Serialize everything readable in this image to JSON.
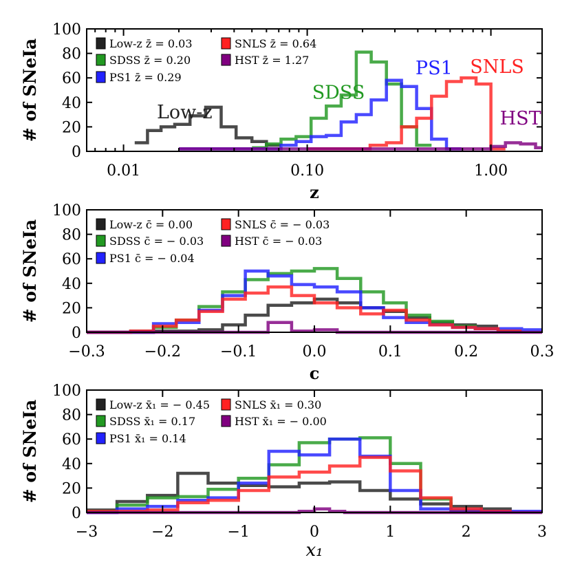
{
  "chart_data": [
    {
      "type": "histogram",
      "xscale": "log",
      "xlabel": "z",
      "ylabel": "# of SNeIa",
      "xlim": [
        0.0063,
        1.9
      ],
      "ylim": [
        0,
        100
      ],
      "yticks": [
        0,
        20,
        40,
        60,
        80,
        100
      ],
      "xtick_labels": [
        "0.01",
        "0.10",
        "1.00"
      ],
      "xtick_values": [
        0.01,
        0.1,
        1.0
      ],
      "legend": [
        {
          "label": "Low-z z̄ = 0.03",
          "color": "#222222"
        },
        {
          "label": "SNLS z̄ = 0.64",
          "color": "#ff2222"
        },
        {
          "label": "SDSS z̄ = 0.20",
          "color": "#229922"
        },
        {
          "label": "HST z̄ = 1.27",
          "color": "#800080"
        },
        {
          "label": "PS1 z̄ = 0.29",
          "color": "#2222ff"
        }
      ],
      "annotations": [
        {
          "text": "Low-z",
          "color": "#222222"
        },
        {
          "text": "SDSS",
          "color": "#229922"
        },
        {
          "text": "PS1",
          "color": "#2222ff"
        },
        {
          "text": "SNLS",
          "color": "#ff2222"
        },
        {
          "text": "HST",
          "color": "#800080"
        }
      ],
      "series": [
        {
          "name": "Low-z",
          "color": "#222222",
          "edges": [
            0.0115,
            0.0135,
            0.016,
            0.019,
            0.023,
            0.028,
            0.034,
            0.041,
            0.05,
            0.06,
            0.072
          ],
          "values": [
            7,
            17,
            20,
            22,
            29,
            36,
            20,
            11,
            8,
            5
          ]
        },
        {
          "name": "SDSS",
          "color": "#229922",
          "edges": [
            0.05,
            0.06,
            0.072,
            0.087,
            0.105,
            0.127,
            0.153,
            0.185,
            0.223,
            0.27,
            0.326,
            0.394,
            0.475
          ],
          "values": [
            3,
            6,
            10,
            12,
            27,
            37,
            46,
            81,
            73,
            55,
            20,
            5
          ]
        },
        {
          "name": "PS1",
          "color": "#2222ff",
          "edges": [
            0.02,
            0.072,
            0.087,
            0.105,
            0.127,
            0.153,
            0.185,
            0.223,
            0.27,
            0.326,
            0.394,
            0.475,
            0.573,
            0.69
          ],
          "values": [
            2,
            5,
            8,
            12,
            13,
            24,
            30,
            42,
            58,
            53,
            35,
            10,
            2
          ]
        },
        {
          "name": "SNLS",
          "color": "#ff2222",
          "edges": [
            0.1,
            0.22,
            0.27,
            0.326,
            0.394,
            0.475,
            0.573,
            0.69,
            0.83,
            1.0,
            1.2
          ],
          "values": [
            2,
            5,
            7,
            20,
            27,
            45,
            57,
            60,
            55,
            2
          ]
        },
        {
          "name": "HST",
          "color": "#800080",
          "edges": [
            0.02,
            1.0,
            1.2,
            1.45,
            1.75,
            1.9
          ],
          "values": [
            2,
            4,
            7,
            6,
            3
          ]
        }
      ]
    },
    {
      "type": "histogram",
      "xlabel": "c",
      "ylabel": "# of SNeIa",
      "xlim": [
        -0.3,
        0.3
      ],
      "ylim": [
        0,
        100
      ],
      "yticks": [
        0,
        20,
        40,
        60,
        80,
        100
      ],
      "xtick_values": [
        -0.3,
        -0.2,
        -0.1,
        0.0,
        0.1,
        0.2,
        0.3
      ],
      "xtick_labels": [
        "−0.3",
        "−0.2",
        "−0.1",
        "0.0",
        "0.1",
        "0.2",
        "0.3"
      ],
      "legend": [
        {
          "label": "Low-z c̄ = 0.00",
          "color": "#222222"
        },
        {
          "label": "SNLS c̄ = − 0.03",
          "color": "#ff2222"
        },
        {
          "label": "SDSS c̄ = − 0.03",
          "color": "#229922"
        },
        {
          "label": "HST c̄ = − 0.03",
          "color": "#800080"
        },
        {
          "label": "PS1 c̄ = − 0.04",
          "color": "#2222ff"
        }
      ],
      "series": [
        {
          "name": "Low-z",
          "color": "#222222",
          "edges": [
            -0.3,
            -0.273,
            -0.242,
            -0.212,
            -0.182,
            -0.152,
            -0.121,
            -0.091,
            -0.061,
            -0.03,
            0.0,
            0.03,
            0.061,
            0.091,
            0.121,
            0.152,
            0.182,
            0.212,
            0.242
          ],
          "values": [
            0,
            0,
            1,
            1,
            1,
            2,
            6,
            14,
            22,
            24,
            27,
            24,
            20,
            17,
            12,
            8,
            6,
            5
          ]
        },
        {
          "name": "SDSS",
          "color": "#229922",
          "edges": [
            -0.3,
            -0.212,
            -0.182,
            -0.152,
            -0.121,
            -0.091,
            -0.061,
            -0.03,
            0.0,
            0.03,
            0.061,
            0.091,
            0.121,
            0.152,
            0.182,
            0.212,
            0.242,
            0.273
          ],
          "values": [
            0,
            4,
            10,
            21,
            33,
            43,
            48,
            50,
            52,
            44,
            33,
            24,
            14,
            9,
            5,
            3,
            1
          ]
        },
        {
          "name": "PS1",
          "color": "#2222ff",
          "edges": [
            -0.3,
            -0.212,
            -0.182,
            -0.152,
            -0.121,
            -0.091,
            -0.061,
            -0.03,
            0.0,
            0.03,
            0.061,
            0.091,
            0.121,
            0.152,
            0.182,
            0.212,
            0.242,
            0.273,
            0.3
          ],
          "values": [
            0,
            7,
            8,
            18,
            30,
            50,
            46,
            39,
            37,
            33,
            20,
            12,
            8,
            6,
            4,
            3,
            3,
            2
          ]
        },
        {
          "name": "SNLS",
          "color": "#ff2222",
          "edges": [
            -0.3,
            -0.242,
            -0.212,
            -0.182,
            -0.152,
            -0.121,
            -0.091,
            -0.061,
            -0.03,
            0.0,
            0.03,
            0.061,
            0.091,
            0.121,
            0.152,
            0.182,
            0.212,
            0.242,
            0.273
          ],
          "values": [
            0,
            1,
            5,
            10,
            17,
            27,
            32,
            37,
            30,
            24,
            20,
            15,
            18,
            10,
            6,
            4,
            3,
            1
          ]
        },
        {
          "name": "HST",
          "color": "#800080",
          "edges": [
            -0.3,
            -0.061,
            -0.03,
            0.0,
            0.03,
            0.3
          ],
          "values": [
            0,
            8,
            1,
            2,
            0
          ]
        }
      ]
    },
    {
      "type": "histogram",
      "xlabel": "x₁",
      "ylabel": "# of SNeIa",
      "xlim": [
        -3,
        3
      ],
      "ylim": [
        0,
        100
      ],
      "yticks": [
        0,
        20,
        40,
        60,
        80,
        100
      ],
      "xtick_values": [
        -3,
        -2,
        -1,
        0,
        1,
        2,
        3
      ],
      "xtick_labels": [
        "−3",
        "−2",
        "−1",
        "0",
        "1",
        "2",
        "3"
      ],
      "legend": [
        {
          "label": "Low-z x̄₁ = − 0.45",
          "color": "#222222"
        },
        {
          "label": "SNLS x̄₁ = 0.30",
          "color": "#ff2222"
        },
        {
          "label": "SDSS x̄₁ = 0.17",
          "color": "#229922"
        },
        {
          "label": "HST x̄₁ = − 0.00",
          "color": "#800080"
        },
        {
          "label": "PS1 x̄₁ = 0.14",
          "color": "#2222ff"
        }
      ],
      "series": [
        {
          "name": "Low-z",
          "color": "#222222",
          "edges": [
            -3,
            -2.6,
            -2.2,
            -1.8,
            -1.4,
            -1.0,
            -0.6,
            -0.2,
            0.2,
            0.6,
            1.0,
            1.4,
            1.8,
            2.2,
            2.6
          ],
          "values": [
            2,
            9,
            14,
            32,
            24,
            22,
            21,
            24,
            25,
            18,
            11,
            7,
            5,
            3
          ]
        },
        {
          "name": "SDSS",
          "color": "#229922",
          "edges": [
            -3,
            -2.6,
            -2.2,
            -1.8,
            -1.4,
            -1.0,
            -0.6,
            -0.2,
            0.2,
            0.6,
            1.0,
            1.4,
            1.8,
            2.2
          ],
          "values": [
            1,
            6,
            12,
            13,
            19,
            28,
            39,
            57,
            60,
            61,
            40,
            11,
            1
          ]
        },
        {
          "name": "PS1",
          "color": "#2222ff",
          "edges": [
            -3,
            -2.6,
            -2.2,
            -1.8,
            -1.4,
            -1.0,
            -0.6,
            -0.2,
            0.2,
            0.6,
            1.0,
            1.4,
            1.8,
            2.2,
            2.6,
            3.0
          ],
          "values": [
            0,
            3,
            5,
            10,
            12,
            24,
            50,
            47,
            60,
            46,
            18,
            3,
            2,
            1,
            1
          ]
        },
        {
          "name": "SNLS",
          "color": "#ff2222",
          "edges": [
            -3,
            -2.2,
            -1.8,
            -1.4,
            -1.0,
            -0.6,
            -0.2,
            0.2,
            0.6,
            1.0,
            1.4,
            1.8,
            2.2,
            2.6
          ],
          "values": [
            1,
            2,
            8,
            10,
            18,
            29,
            33,
            38,
            45,
            34,
            12,
            3,
            1
          ]
        },
        {
          "name": "HST",
          "color": "#800080",
          "edges": [
            -3,
            -0.2,
            0.0,
            0.2,
            0.4,
            3.0
          ],
          "values": [
            0,
            1,
            3,
            1,
            0
          ]
        }
      ]
    }
  ]
}
